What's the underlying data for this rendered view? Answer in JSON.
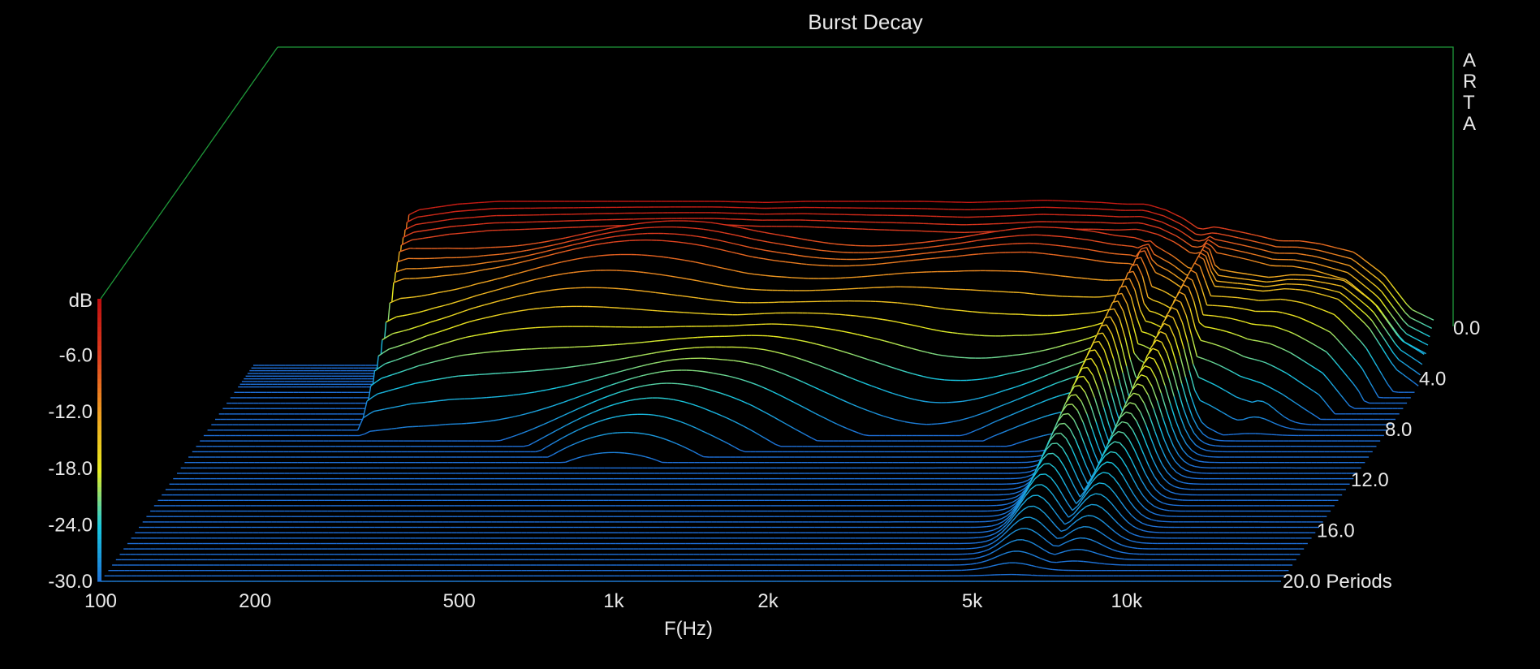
{
  "chart_data": {
    "type": "waterfall",
    "title": "Burst Decay",
    "watermark_letters": [
      "A",
      "R",
      "T",
      "A"
    ],
    "xlabel": "F(Hz)",
    "x_scale": "log",
    "xlim": [
      100,
      20000
    ],
    "x_ticks": [
      {
        "value": 100,
        "label": "100"
      },
      {
        "value": 200,
        "label": "200"
      },
      {
        "value": 500,
        "label": "500"
      },
      {
        "value": 1000,
        "label": "1k"
      },
      {
        "value": 2000,
        "label": "2k"
      },
      {
        "value": 5000,
        "label": "5k"
      },
      {
        "value": 10000,
        "label": "10k"
      }
    ],
    "zlabel": "dB",
    "zlim": [
      -30,
      0
    ],
    "z_ticks": [
      {
        "value": -6,
        "label": "-6.0"
      },
      {
        "value": -12,
        "label": "-12.0"
      },
      {
        "value": -18,
        "label": "-18.0"
      },
      {
        "value": -24,
        "label": "-24.0"
      },
      {
        "value": -30,
        "label": "-30.0"
      }
    ],
    "ylabel": "Periods",
    "ylim": [
      0,
      20
    ],
    "y_ticks": [
      {
        "value": 0,
        "label": "0.0"
      },
      {
        "value": 4,
        "label": "4.0"
      },
      {
        "value": 8,
        "label": "8.0"
      },
      {
        "value": 12,
        "label": "12.0"
      },
      {
        "value": 16,
        "label": "16.0"
      },
      {
        "value": 20,
        "label": "20.0 Periods"
      }
    ],
    "colormap": [
      "#1e6fd8",
      "#18c8e0",
      "#e8ee20",
      "#f0a020",
      "#e04020",
      "#c01010"
    ],
    "slice_periods": [
      0,
      0.25,
      0.5,
      0.75,
      1,
      1.25,
      1.5,
      1.75,
      2,
      2.5,
      3,
      3.5,
      4,
      4.5,
      5,
      5.5,
      6,
      6.5,
      7,
      7.5,
      8,
      8.5,
      9,
      9.5,
      10,
      10.5,
      11,
      11.5,
      12,
      12.5,
      13,
      13.5,
      14,
      14.5,
      15,
      15.5,
      16,
      16.5,
      17,
      17.5,
      18,
      18.5,
      19,
      19.5,
      20
    ],
    "freq_hz": [
      100,
      190,
      200,
      210,
      250,
      300,
      400,
      500,
      600,
      800,
      1000,
      1200,
      1500,
      2000,
      2500,
      3000,
      3500,
      4000,
      4500,
      5000,
      5500,
      6000,
      6500,
      7000,
      7500,
      8000,
      9000,
      10000,
      11000,
      12000,
      14000,
      16000,
      18000,
      20000
    ],
    "initial_response_db": [
      -30,
      -30,
      -3.5,
      -2.5,
      -1.5,
      -1.0,
      -1.0,
      -1.0,
      -1.0,
      -1.0,
      -1.2,
      -1.0,
      -1.0,
      -1.0,
      -1.2,
      -1.0,
      -0.8,
      -1.0,
      -1.2,
      -1.5,
      -1.5,
      -2.5,
      -4.0,
      -6.0,
      -5.5,
      -6.0,
      -7.0,
      -8.0,
      -8.0,
      -8.5,
      -10.0,
      -14.0,
      -20.0,
      -22.0
    ],
    "resonances": [
      {
        "freq_hz": 5800,
        "level_db": -5,
        "decay_to_periods": 20
      },
      {
        "freq_hz": 7500,
        "level_db": -6,
        "decay_to_periods": 20
      },
      {
        "freq_hz": 11000,
        "level_db": -9,
        "decay_to_periods": 8
      }
    ]
  }
}
